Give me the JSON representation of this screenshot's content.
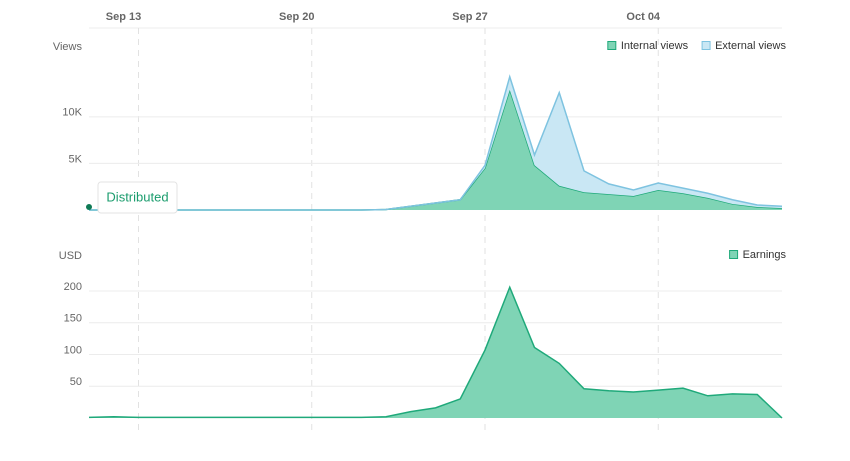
{
  "chart_data": [
    {
      "type": "stacked-area",
      "axis_label": "Views",
      "annotation": "Distributed",
      "categories": [
        null,
        null,
        "Sep 13",
        null,
        null,
        null,
        null,
        null,
        null,
        "Sep 20",
        null,
        null,
        null,
        null,
        null,
        null,
        "Sep 27",
        null,
        null,
        null,
        null,
        null,
        null,
        "Oct 04",
        null,
        null,
        null,
        null,
        null
      ],
      "series": [
        {
          "name": "Internal views",
          "color": "#1fa97a",
          "fill": "#7fd4b5",
          "values": [
            0,
            0,
            0,
            0,
            0,
            0,
            0,
            0,
            0,
            0,
            0,
            0,
            50,
            400,
            750,
            1100,
            4500,
            12900,
            4800,
            2600,
            1900,
            1700,
            1500,
            2150,
            1800,
            1300,
            650,
            320,
            200
          ]
        },
        {
          "name": "External views",
          "color": "#7ec3e0",
          "fill": "#c9e7f4",
          "values": [
            0,
            0,
            0,
            0,
            0,
            0,
            0,
            0,
            0,
            0,
            0,
            0,
            0,
            0,
            0,
            0,
            300,
            1400,
            1100,
            10000,
            2300,
            1100,
            650,
            750,
            550,
            500,
            450,
            220,
            200
          ]
        }
      ],
      "ylim": [
        0,
        19000
      ],
      "yticks": [
        {
          "value": 5000,
          "label": "5K"
        },
        {
          "value": 10000,
          "label": "10K"
        }
      ],
      "grid": true,
      "legend": "top-right"
    },
    {
      "type": "area",
      "axis_label": "USD",
      "series": [
        {
          "name": "Earnings",
          "color": "#1fa97a",
          "fill": "#7fd4b5",
          "values": [
            1,
            2,
            1,
            1,
            1,
            1,
            1,
            1,
            1,
            1,
            1,
            1,
            2,
            10,
            16,
            30,
            107,
            206,
            111,
            86,
            46,
            43,
            41,
            44,
            47,
            35,
            38,
            37,
            0
          ]
        }
      ],
      "ylim": [
        0,
        230
      ],
      "yticks": [
        50,
        100,
        150,
        200
      ],
      "grid": true,
      "legend": "top-right"
    }
  ]
}
